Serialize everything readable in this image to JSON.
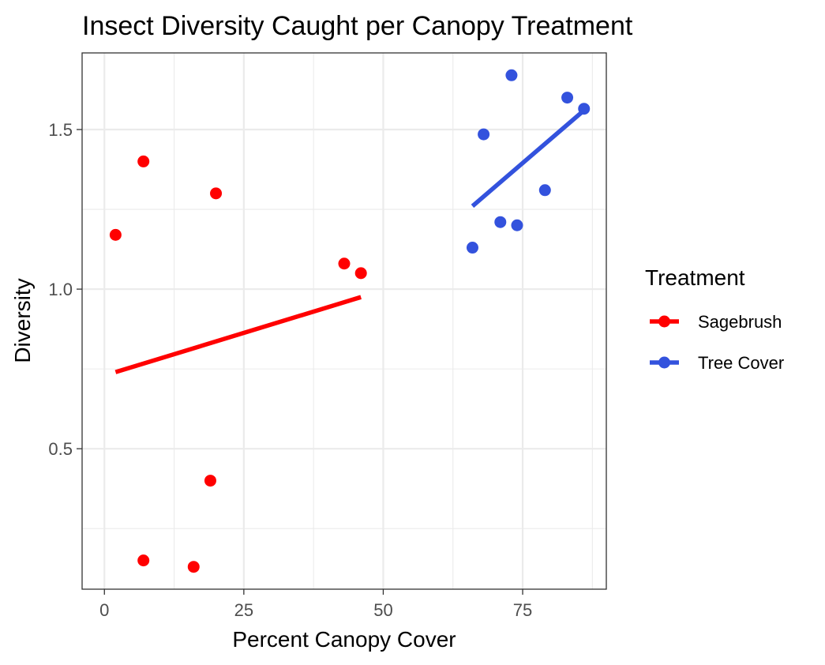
{
  "chart_data": {
    "type": "scatter",
    "title": "Insect Diversity Caught per Canopy Treatment",
    "xlabel": "Percent Canopy Cover",
    "ylabel": "Diversity",
    "xlim": [
      -4,
      90
    ],
    "ylim": [
      0.06,
      1.74
    ],
    "x_ticks": [
      0,
      25,
      50,
      75
    ],
    "x_tick_labels": [
      "0",
      "25",
      "50",
      "75"
    ],
    "x_minor_ticks": [
      12.5,
      37.5,
      62.5,
      87.5
    ],
    "y_ticks": [
      0.5,
      1.0,
      1.5
    ],
    "y_tick_labels": [
      "0.5",
      "1.0",
      "1.5"
    ],
    "y_minor_ticks": [
      0.25,
      0.75,
      1.25
    ],
    "grid": true,
    "legend": {
      "title": "Treatment",
      "placement": "right"
    },
    "series": [
      {
        "name": "Sagebrush",
        "color": "#ff0000",
        "points": [
          {
            "x": 2,
            "y": 1.17
          },
          {
            "x": 7,
            "y": 1.4
          },
          {
            "x": 20,
            "y": 1.3
          },
          {
            "x": 43,
            "y": 1.08
          },
          {
            "x": 46,
            "y": 1.05
          },
          {
            "x": 19,
            "y": 0.4
          },
          {
            "x": 7,
            "y": 0.15
          },
          {
            "x": 16,
            "y": 0.13
          }
        ],
        "fit_line": [
          {
            "x": 2,
            "y": 0.74
          },
          {
            "x": 46,
            "y": 0.975
          }
        ]
      },
      {
        "name": "Tree Cover",
        "color": "#3352dd",
        "points": [
          {
            "x": 73,
            "y": 1.67
          },
          {
            "x": 83,
            "y": 1.6
          },
          {
            "x": 86,
            "y": 1.565
          },
          {
            "x": 68,
            "y": 1.485
          },
          {
            "x": 79,
            "y": 1.31
          },
          {
            "x": 71,
            "y": 1.21
          },
          {
            "x": 74,
            "y": 1.2
          },
          {
            "x": 66,
            "y": 1.13
          }
        ],
        "fit_line": [
          {
            "x": 66,
            "y": 1.26
          },
          {
            "x": 86,
            "y": 1.56
          }
        ]
      }
    ]
  }
}
